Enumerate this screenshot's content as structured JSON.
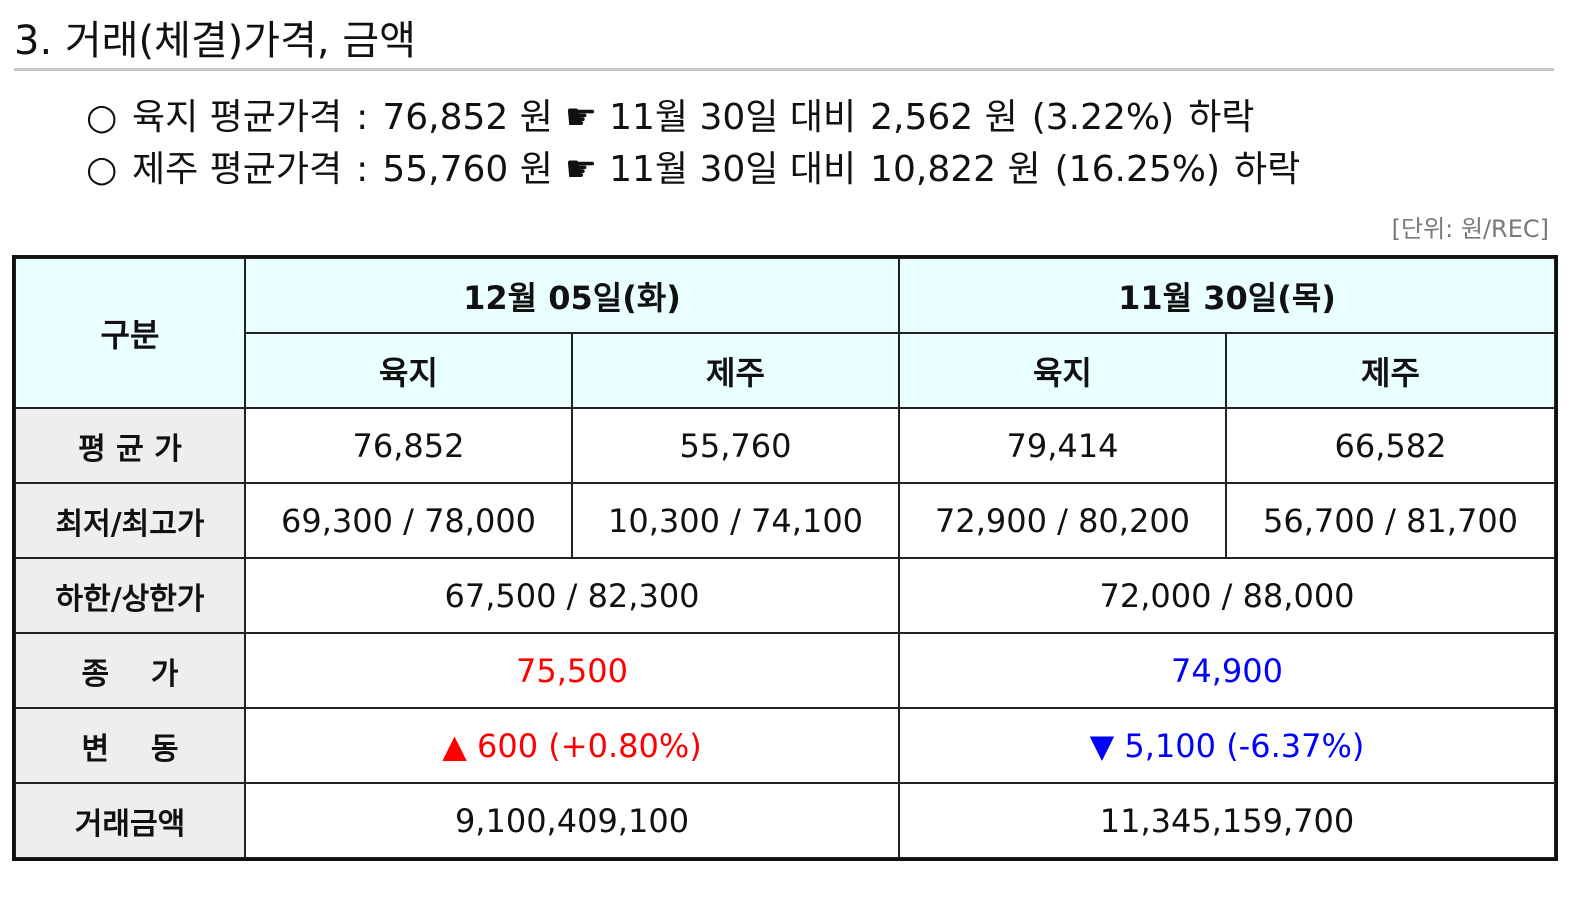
{
  "section": {
    "title": "3. 거래(체결)가격, 금액"
  },
  "summary": [
    {
      "bullet": "○",
      "label": "육지 평균가격",
      "colon": ":",
      "price": "76,852 원",
      "arrow": "☛",
      "compare": "11월 30일 대비",
      "diff": "2,562 원",
      "pct": "(3.22%)",
      "direction": "하락"
    },
    {
      "bullet": "○",
      "label": "제주 평균가격",
      "colon": ":",
      "price": "55,760 원",
      "arrow": "☛",
      "compare": "11월 30일 대비",
      "diff": "10,822 원",
      "pct": "(16.25%)",
      "direction": "하락"
    }
  ],
  "unit": "[단위: 원/REC]",
  "table": {
    "corner": "구분",
    "dates": [
      "12월 05일(화)",
      "11월 30일(목)"
    ],
    "regions": [
      "육지",
      "제주",
      "육지",
      "제주"
    ],
    "rows": {
      "avg": {
        "label": "평 균 가",
        "values": [
          "76,852",
          "55,760",
          "79,414",
          "66,582"
        ]
      },
      "minmax": {
        "label": "최저/최고가",
        "values": [
          "69,300 / 78,000",
          "10,300 / 74,100",
          "72,900 / 80,200",
          "56,700 / 81,700"
        ]
      },
      "limits": {
        "label": "하한/상한가",
        "values": [
          "67,500 / 82,300",
          "72,000 / 88,000"
        ]
      },
      "close": {
        "label": "종    가",
        "values": [
          "75,500",
          "74,900"
        ]
      },
      "change": {
        "label": "변    동",
        "values": [
          "▲ 600 (+0.80%)",
          "▼ 5,100 (-6.37%)"
        ]
      },
      "amount": {
        "label": "거래금액",
        "values": [
          "9,100,409,100",
          "11,345,159,700"
        ]
      }
    },
    "colors": {
      "header_bg": "#eaffff",
      "rowheader_bg": "#eeeeee",
      "up": "#ff0000",
      "down": "#0000ff"
    }
  }
}
